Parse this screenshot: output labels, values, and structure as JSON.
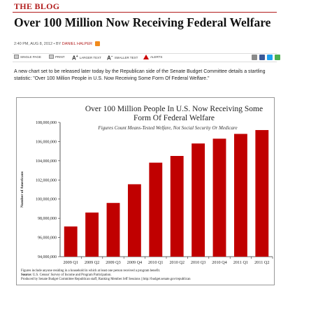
{
  "header": {
    "section_label": "THE BLOG"
  },
  "article": {
    "title": "Over 100 Million Now Receiving Federal Welfare",
    "byline_prefix": "2:40 PM, AUG 8, 2012 • BY ",
    "author": "DANIEL HALPER",
    "intro": "A new chart set to be released later today by the Republican side of the Senate Budget Committee details a startling statistic: \"Over 100 Million People in U.S. Now Receiving Some Form Of Federal Welfare.\""
  },
  "toolbar": {
    "single_page": "Single Page",
    "print": "Print",
    "larger_text": "Larger Text",
    "smaller_text": "Smaller Text",
    "alerts": "Alerts"
  },
  "share_colors": {
    "email": "#8a8a8a",
    "facebook": "#3b5998",
    "twitter": "#1da1f2",
    "share": "#4caf50"
  },
  "chart_data": {
    "type": "bar",
    "title_line1": "Over 100 Million People In U.S. Now Receiving Some",
    "title_line2": "Form Of Federal Welfare",
    "subtitle": "Figures Count Means-Tested Welfare, Not Social Security Or Medicare",
    "ylabel": "Number of Americans",
    "xlabel": "",
    "categories": [
      "2009 Q1",
      "2009 Q2",
      "2009 Q3",
      "2009 Q4",
      "2010 Q1",
      "2010 Q2",
      "2010 Q3",
      "2010 Q4",
      "2011 Q1",
      "2011 Q2"
    ],
    "values": [
      97150000,
      98600000,
      99600000,
      101550000,
      103800000,
      104500000,
      105800000,
      106300000,
      106800000,
      107200000
    ],
    "ylim": [
      94000000,
      108000000
    ],
    "yticks": [
      "94,000,000",
      "96,000,000",
      "98,000,000",
      "100,000,000",
      "102,000,000",
      "104,000,000",
      "106,000,000",
      "108,000,000"
    ],
    "ytick_values": [
      94000000,
      96000000,
      98000000,
      100000000,
      102000000,
      104000000,
      106000000,
      108000000
    ],
    "bar_color": "#c00000",
    "grid": false,
    "legend": "none",
    "footnote1": "Figures include anyone residing in a household in which at least one person received a program benefit.",
    "source_label": "Source:",
    "source_text": " U.S. Census' Survey of Income and Program Participation.",
    "credit": "Produced by Senate Budget Committee Republican staff, Ranking Member Jeff Sessions || http://budget.senate.gov/republican"
  }
}
